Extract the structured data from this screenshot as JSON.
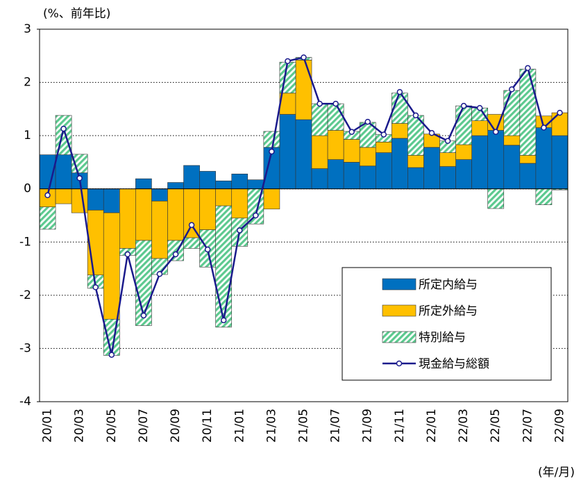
{
  "chart_data": {
    "type": "stacked_bar_line",
    "y_unit_label": "(%、前年比)",
    "x_unit_label": "(年/月)",
    "categories": [
      "20/01",
      null,
      "20/03",
      null,
      "20/05",
      null,
      "20/07",
      null,
      "20/09",
      null,
      "20/11",
      null,
      "21/01",
      null,
      "21/03",
      null,
      "21/05",
      null,
      "21/07",
      null,
      "21/09",
      null,
      "21/11",
      null,
      "22/01",
      null,
      "22/03",
      null,
      "22/05",
      null,
      "22/07",
      null,
      "22/09"
    ],
    "ylim": [
      -4,
      3
    ],
    "yticks": [
      3,
      2,
      1,
      0,
      -1,
      -2,
      -3,
      -4
    ],
    "grid": true,
    "legend": "lower right",
    "series": [
      {
        "name": "所定内給与",
        "kind": "bar",
        "color": "#0070c0",
        "values": [
          0.64,
          0.64,
          0.3,
          -0.4,
          -0.45,
          0,
          0.19,
          -0.23,
          0.12,
          0.44,
          0.33,
          0.15,
          0.28,
          0.17,
          0.78,
          1.4,
          1.3,
          0.38,
          0.55,
          0.5,
          0.43,
          0.68,
          0.95,
          0.4,
          0.78,
          0.42,
          0.55,
          1.0,
          1.1,
          0.82,
          0.48,
          1.15,
          1.0
        ]
      },
      {
        "name": "所定外給与",
        "kind": "bar",
        "color": "#ffc000",
        "values": [
          -0.34,
          -0.28,
          -0.45,
          -1.22,
          -2.0,
          -1.12,
          -0.97,
          -1.08,
          -0.97,
          -0.92,
          -0.77,
          -0.32,
          -0.55,
          0,
          -0.38,
          0.4,
          1.12,
          0.62,
          0.55,
          0.43,
          0.35,
          0.2,
          0.28,
          0.23,
          0.25,
          0.26,
          0.28,
          0.28,
          0.3,
          0.18,
          0.15,
          0.22,
          0.43
        ]
      },
      {
        "name": "特別給与",
        "kind": "hatched_bar",
        "color": "#5cc98f",
        "values": [
          -0.42,
          0.74,
          0.35,
          -0.25,
          -0.68,
          -0.13,
          -1.6,
          -0.3,
          -0.38,
          -0.2,
          -0.7,
          -2.28,
          -0.53,
          -0.66,
          0.3,
          0.58,
          0.05,
          0.6,
          0.5,
          0.15,
          0.47,
          0.14,
          0.57,
          0.75,
          0,
          0.22,
          0.73,
          0.24,
          -0.37,
          0.85,
          1.62,
          -0.3,
          -0.02
        ]
      },
      {
        "name": "現金給与総額",
        "kind": "line",
        "color": "#1a1a8c",
        "values": [
          -0.12,
          1.13,
          0.2,
          -1.85,
          -3.12,
          -1.23,
          -2.38,
          -1.6,
          -1.23,
          -0.68,
          -1.14,
          -2.47,
          -0.78,
          -0.5,
          0.7,
          2.4,
          2.47,
          1.6,
          1.6,
          1.07,
          1.26,
          1.02,
          1.82,
          1.38,
          1.05,
          0.9,
          1.56,
          1.52,
          1.07,
          1.87,
          2.27,
          1.15,
          1.43
        ]
      }
    ]
  }
}
